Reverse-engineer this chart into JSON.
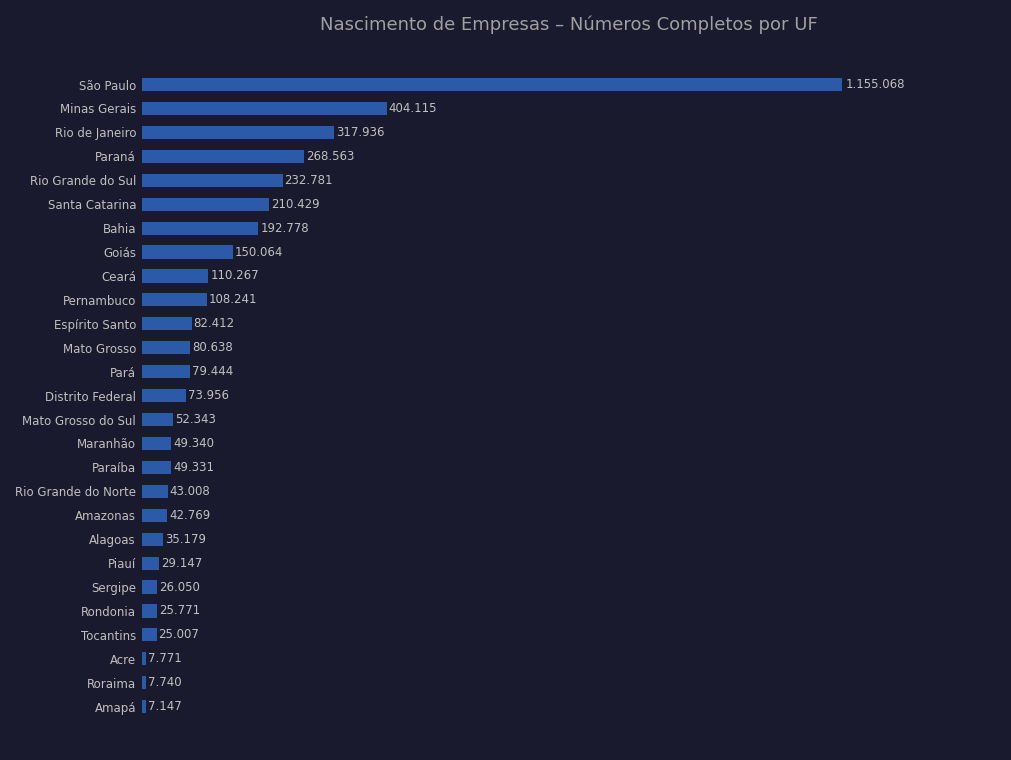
{
  "title": "Nascimento de Empresas – Números Completos por UF",
  "categories": [
    "Amapá",
    "Roraima",
    "Acre",
    "Tocantins",
    "Rondonia",
    "Sergipe",
    "Piauí",
    "Alagoas",
    "Amazonas",
    "Rio Grande do Norte",
    "Paraíba",
    "Maranhão",
    "Mato Grosso do Sul",
    "Distrito Federal",
    "Pará",
    "Mato Grosso",
    "Espírito Santo",
    "Pernambuco",
    "Ceará",
    "Goiás",
    "Bahia",
    "Santa Catarina",
    "Rio Grande do Sul",
    "Paraná",
    "Rio de Janeiro",
    "Minas Gerais",
    "São Paulo"
  ],
  "values": [
    7147,
    7740,
    7771,
    25007,
    25771,
    26050,
    29147,
    35179,
    42769,
    43008,
    49331,
    49340,
    52343,
    73956,
    79444,
    80638,
    82412,
    108241,
    110267,
    150064,
    192778,
    210429,
    232781,
    268563,
    317936,
    404115,
    1155068
  ],
  "labels": [
    "7.147",
    "7.740",
    "7.771",
    "25.007",
    "25.771",
    "26.050",
    "29.147",
    "35.179",
    "42.769",
    "43.008",
    "49.331",
    "49.340",
    "52.343",
    "73.956",
    "79.444",
    "80.638",
    "82.412",
    "108.241",
    "110.267",
    "150.064",
    "192.778",
    "210.429",
    "232.781",
    "268.563",
    "317.936",
    "404.115",
    "1.155.068"
  ],
  "bar_color": "#2B5BA8",
  "background_color": "#1A1A2E",
  "text_color": "#C0C0C0",
  "title_color": "#A0A0A0",
  "title_fontsize": 13,
  "label_fontsize": 8.5,
  "tick_fontsize": 8.5,
  "bar_height": 0.55,
  "xlim_factor": 1.22
}
